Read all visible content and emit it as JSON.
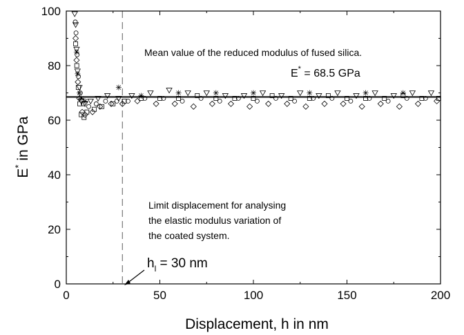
{
  "chart_data": {
    "type": "scatter",
    "xlabel": "Displacement, h in nm",
    "ylabel_main": "E",
    "ylabel_sup": "*",
    "ylabel_rest": " in GPa",
    "xlim": [
      0,
      200
    ],
    "ylim": [
      0,
      100
    ],
    "x_ticks": [
      "0",
      "50",
      "100",
      "150",
      "200"
    ],
    "y_ticks": [
      "0",
      "20",
      "40",
      "60",
      "80",
      "100"
    ],
    "grid": false,
    "mean_line": {
      "y": 68.5
    },
    "limit_line": {
      "x": 30,
      "style": "dashed"
    },
    "annotations": {
      "mean_desc": "Mean value of the reduced modulus of fused silica.",
      "mean_value_main": "E",
      "mean_value_sup": "*",
      "mean_value_rest": " = 68.5 GPa",
      "limit_desc_lines": [
        "Limit displacement for analysing",
        "the elastic modulus variation of",
        "the coated system."
      ],
      "limit_value_main": "h",
      "limit_value_sub": "l",
      "limit_value_rest": " = 30 nm"
    },
    "series": [
      {
        "marker": "triangle-down",
        "x": [
          4.5,
          5,
          5.5,
          6,
          7,
          8,
          10,
          13,
          17,
          22,
          28,
          35,
          45,
          55,
          65,
          75,
          85,
          95,
          105,
          115,
          125,
          135,
          145,
          155,
          165,
          175,
          185,
          195
        ],
        "y": [
          99,
          95,
          86,
          78,
          72,
          67,
          66,
          67,
          68,
          69,
          68,
          69,
          70,
          71,
          70,
          70,
          69,
          69,
          70,
          69,
          70,
          69,
          70,
          69,
          70,
          69,
          70,
          70
        ]
      },
      {
        "marker": "circle",
        "x": [
          4.8,
          5.2,
          5.8,
          6.5,
          7.5,
          9,
          12,
          16,
          21,
          27,
          33,
          42,
          52,
          62,
          72,
          82,
          92,
          102,
          112,
          122,
          132,
          142,
          152,
          162,
          172,
          182,
          192
        ],
        "y": [
          96,
          92,
          84,
          76,
          70,
          66,
          65,
          66,
          67,
          67,
          67,
          68,
          68,
          67,
          68,
          67,
          68,
          67,
          68,
          67,
          68,
          68,
          67,
          68,
          67,
          68,
          68
        ]
      },
      {
        "marker": "diamond",
        "x": [
          5,
          5.5,
          6.2,
          7,
          8.5,
          10,
          14,
          18,
          24,
          30,
          38,
          48,
          58,
          68,
          78,
          88,
          98,
          108,
          118,
          128,
          138,
          148,
          158,
          168,
          178,
          188,
          198
        ],
        "y": [
          90,
          82,
          74,
          68,
          63,
          62,
          63,
          65,
          66,
          66,
          67,
          66,
          66,
          65,
          66,
          66,
          65,
          66,
          66,
          65,
          66,
          66,
          65,
          66,
          65,
          66,
          67
        ]
      },
      {
        "marker": "square",
        "x": [
          5,
          5.6,
          6.4,
          7.2,
          8,
          9.5,
          11,
          15,
          19,
          25,
          31,
          40,
          50,
          60,
          70,
          80,
          90,
          100,
          110,
          120,
          130,
          140,
          150,
          160,
          170,
          180,
          190,
          199
        ],
        "y": [
          88,
          80,
          72,
          66,
          62,
          61,
          63,
          64,
          65,
          66,
          67,
          68,
          68,
          68,
          69,
          68,
          68,
          68,
          69,
          68,
          68,
          69,
          68,
          68,
          68,
          69,
          68,
          68
        ]
      },
      {
        "marker": "star",
        "x": [
          5.5,
          6,
          7,
          8,
          10,
          28,
          40,
          60,
          80,
          100,
          130,
          160,
          180
        ],
        "y": [
          85,
          77,
          70,
          68,
          67,
          72,
          69,
          70,
          70,
          70,
          70,
          70,
          70
        ]
      }
    ]
  },
  "colors": {
    "ink": "#000000",
    "background": "#ffffff",
    "dashed": "#777777"
  }
}
